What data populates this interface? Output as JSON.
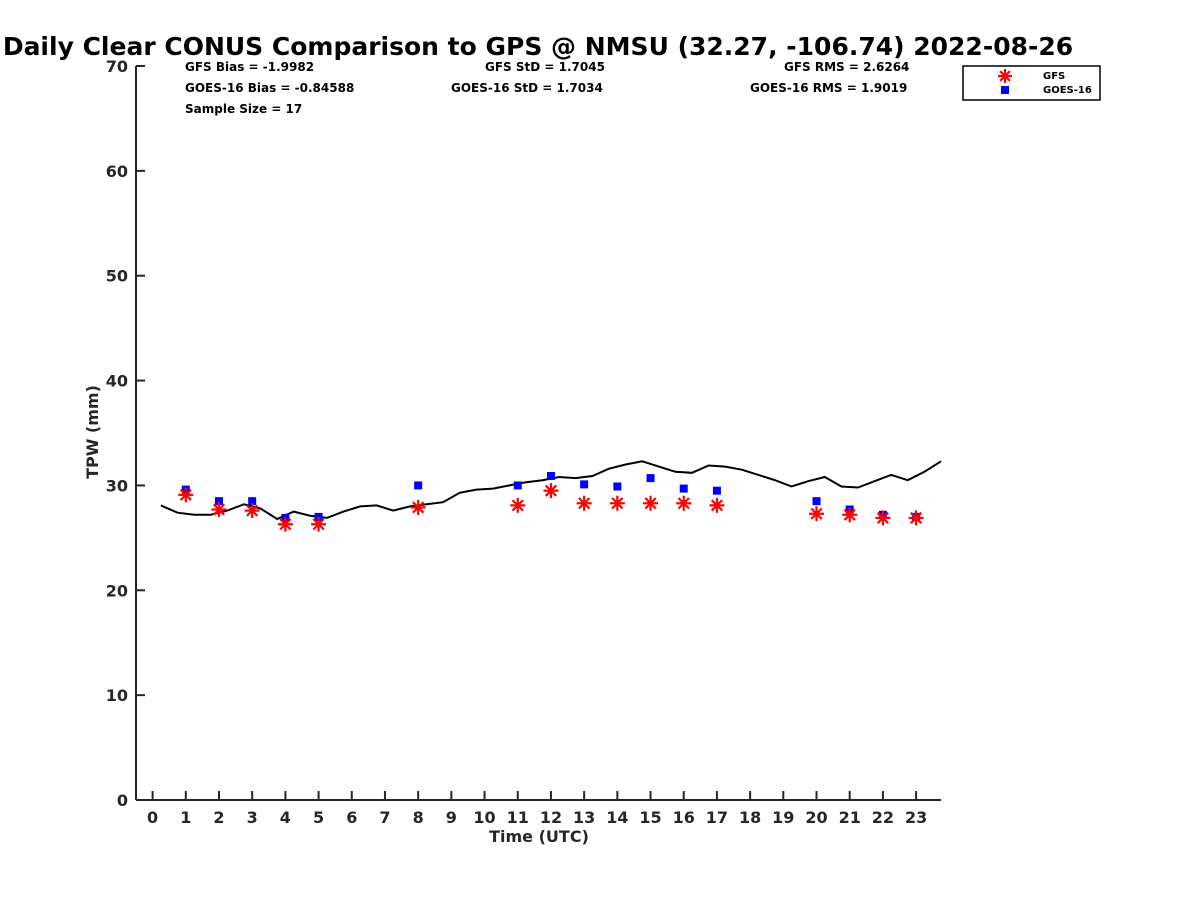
{
  "chart_data": {
    "type": "scatter",
    "title": "Daily Clear CONUS Comparison to GPS @ NMSU (32.27, -106.74) 2022-08-26",
    "xlabel": "Time (UTC)",
    "ylabel": "TPW (mm)",
    "xlim": [
      -0.5,
      23.75
    ],
    "ylim": [
      0,
      70
    ],
    "xticks": [
      0,
      1,
      2,
      3,
      4,
      5,
      6,
      7,
      8,
      9,
      10,
      11,
      12,
      13,
      14,
      15,
      16,
      17,
      18,
      19,
      20,
      21,
      22,
      23
    ],
    "yticks": [
      0,
      10,
      20,
      30,
      40,
      50,
      60,
      70
    ],
    "grid": false,
    "legend_position": "top-right",
    "stats": [
      [
        "GFS Bias = -1.9982",
        "GFS StD = 1.7045",
        "GFS RMS = 2.6264"
      ],
      [
        "GOES-16 Bias = -0.84588",
        "GOES-16 StD = 1.7034",
        "GOES-16 RMS = 1.9019"
      ],
      [
        "Sample Size = 17"
      ]
    ],
    "series": [
      {
        "name": "GFS",
        "marker": "asterisk",
        "color": "#ff0000",
        "x": [
          1,
          2,
          3,
          4,
          5,
          8,
          11,
          12,
          13,
          14,
          15,
          16,
          17,
          20,
          21,
          22,
          23
        ],
        "y": [
          29.1,
          27.7,
          27.6,
          26.3,
          26.3,
          27.9,
          28.1,
          29.5,
          28.3,
          28.3,
          28.3,
          28.3,
          28.1,
          27.3,
          27.2,
          26.9,
          26.9
        ]
      },
      {
        "name": "GOES-16",
        "marker": "square",
        "color": "#0000ff",
        "x": [
          1,
          2,
          3,
          4,
          5,
          8,
          11,
          12,
          13,
          14,
          15,
          16,
          17,
          20,
          21,
          22,
          23
        ],
        "y": [
          29.6,
          28.5,
          28.5,
          26.9,
          27.0,
          30.0,
          30.0,
          30.9,
          30.1,
          29.9,
          30.7,
          29.7,
          29.5,
          28.5,
          27.7,
          27.2,
          27.0
        ]
      },
      {
        "name": "",
        "marker": "line",
        "color": "#000000",
        "x": [
          0.25,
          0.75,
          1.25,
          1.75,
          2.25,
          2.75,
          3.25,
          3.75,
          4.25,
          4.75,
          5.25,
          5.75,
          6.25,
          6.75,
          7.25,
          7.75,
          8.25,
          8.75,
          9.25,
          9.75,
          10.25,
          10.75,
          11.25,
          11.75,
          12.25,
          12.75,
          13.25,
          13.75,
          14.25,
          14.75,
          15.25,
          15.75,
          16.25,
          16.75,
          17.25,
          17.75,
          18.25,
          18.75,
          19.25,
          19.75,
          20.25,
          20.75,
          21.25,
          21.75,
          22.25,
          22.75,
          23.25,
          23.75
        ],
        "y": [
          28.1,
          27.4,
          27.2,
          27.2,
          27.6,
          28.2,
          27.8,
          26.8,
          27.5,
          27.1,
          26.9,
          27.5,
          28.0,
          28.1,
          27.6,
          28.0,
          28.2,
          28.4,
          29.3,
          29.6,
          29.7,
          30.0,
          30.3,
          30.5,
          30.8,
          30.7,
          30.9,
          31.6,
          32.0,
          32.3,
          31.8,
          31.3,
          31.2,
          31.9,
          31.8,
          31.5,
          31.0,
          30.5,
          29.9,
          30.4,
          30.8,
          29.9,
          29.8,
          30.4,
          31.0,
          30.5,
          31.3,
          32.3
        ]
      }
    ]
  }
}
